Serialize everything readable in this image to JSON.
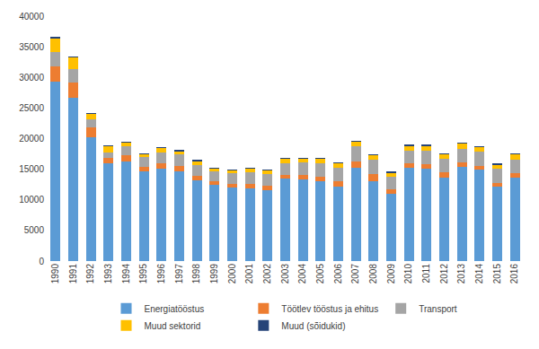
{
  "chart_data": {
    "type": "bar",
    "stacked": true,
    "legend": "bottom",
    "grid": false,
    "categories": [
      "1990",
      "1991",
      "1992",
      "1993",
      "1994",
      "1995",
      "1996",
      "1997",
      "1998",
      "1999",
      "2000",
      "2001",
      "2002",
      "2003",
      "2004",
      "2005",
      "2006",
      "2007",
      "2008",
      "2009",
      "2010",
      "2011",
      "2012",
      "2013",
      "2014",
      "2015",
      "2016"
    ],
    "ylim": [
      0,
      40000
    ],
    "yticks": [
      0,
      5000,
      10000,
      15000,
      20000,
      25000,
      30000,
      35000,
      40000
    ],
    "series": [
      {
        "name": "Energiatööstus",
        "color": "#5B9BD5",
        "values": [
          29300,
          26700,
          20200,
          15900,
          16200,
          14600,
          15100,
          14600,
          13200,
          12400,
          12000,
          11900,
          11600,
          13500,
          13400,
          13100,
          12200,
          15200,
          13100,
          11000,
          15300,
          15100,
          13700,
          15400,
          14900,
          12200,
          13700
        ]
      },
      {
        "name": "Töötlev tööstus ja ehitus",
        "color": "#ED7D31",
        "values": [
          2500,
          2500,
          1700,
          900,
          1100,
          800,
          900,
          900,
          700,
          700,
          600,
          700,
          700,
          600,
          700,
          700,
          800,
          1100,
          1100,
          700,
          600,
          700,
          800,
          700,
          700,
          600,
          600
        ]
      },
      {
        "name": "Transport",
        "color": "#A5A5A5",
        "values": [
          2400,
          2200,
          1200,
          1000,
          1500,
          1600,
          1700,
          1900,
          1800,
          1600,
          1700,
          1900,
          1900,
          1900,
          2000,
          2200,
          2300,
          2500,
          2400,
          2100,
          2100,
          2200,
          2200,
          2200,
          2300,
          2300,
          2300
        ]
      },
      {
        "name": "Muud sektorid",
        "color": "#FFC000",
        "values": [
          2200,
          1900,
          1000,
          1000,
          600,
          500,
          800,
          600,
          700,
          500,
          500,
          700,
          700,
          800,
          700,
          800,
          700,
          700,
          700,
          700,
          900,
          900,
          800,
          900,
          800,
          700,
          900
        ]
      },
      {
        "name": "Muud (sõidukid)",
        "color": "#264478",
        "values": [
          100,
          100,
          50,
          30,
          30,
          30,
          30,
          30,
          30,
          30,
          30,
          30,
          30,
          30,
          30,
          30,
          30,
          30,
          30,
          30,
          30,
          30,
          30,
          30,
          30,
          30,
          30
        ]
      }
    ]
  }
}
